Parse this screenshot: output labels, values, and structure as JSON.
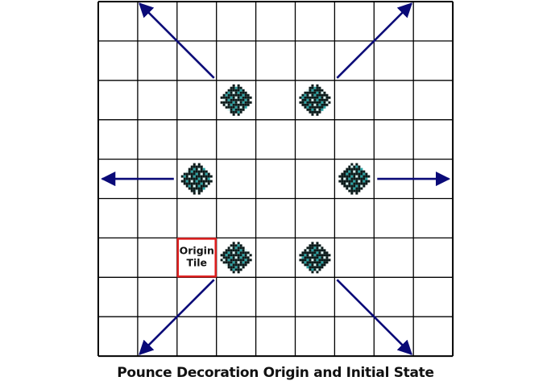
{
  "grid": {
    "rows": 9,
    "cols": 9
  },
  "origin_tile": {
    "row": 6,
    "col": 2,
    "label_line1": "Origin",
    "label_line2": "Tile"
  },
  "decorations": [
    {
      "row": 2,
      "col": 3
    },
    {
      "row": 2,
      "col": 5
    },
    {
      "row": 4,
      "col": 2
    },
    {
      "row": 4,
      "col": 6
    },
    {
      "row": 6,
      "col": 3
    },
    {
      "row": 6,
      "col": 5
    }
  ],
  "arrows": [
    {
      "direction": "up-left"
    },
    {
      "direction": "up-right"
    },
    {
      "direction": "left"
    },
    {
      "direction": "right"
    },
    {
      "direction": "down-left"
    },
    {
      "direction": "down-right"
    }
  ],
  "caption": "Pounce Decoration Origin and Initial State",
  "colors": {
    "grid_line": "#000000",
    "origin_border": "#e02020",
    "arrow": "#0a0a78",
    "decoration_dark": "#0b1a1a",
    "decoration_teal": "#2aa3a3",
    "decoration_light": "#d8f4f2"
  }
}
